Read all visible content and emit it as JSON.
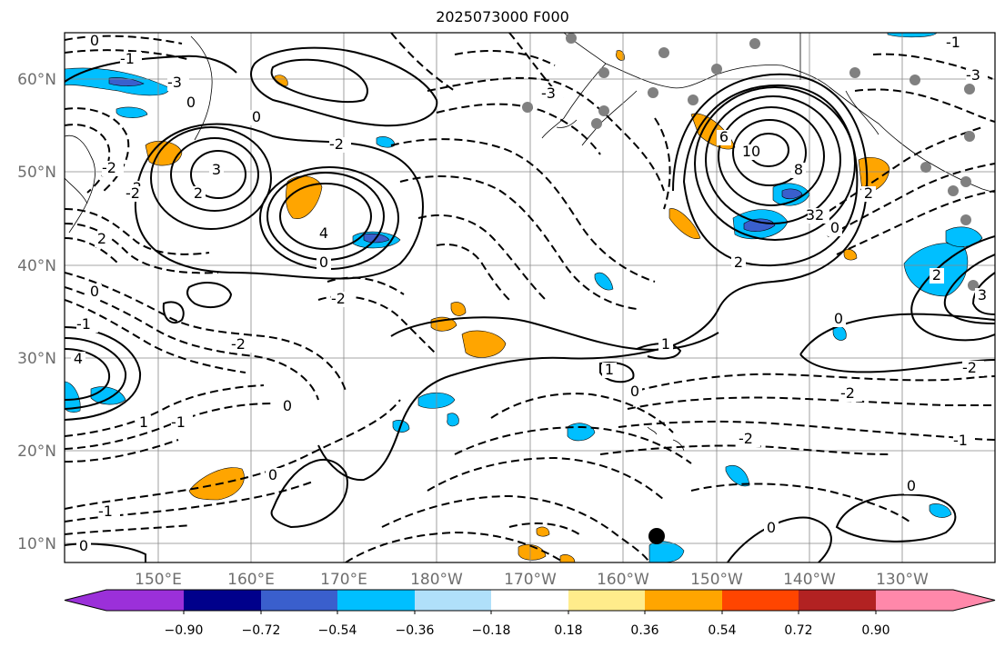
{
  "map": {
    "title": "2025073000 F000",
    "lat_labels": [
      "60°N",
      "50°N",
      "40°N",
      "30°N",
      "20°N",
      "10°N"
    ],
    "lon_labels": [
      "150°E",
      "160°E",
      "170°E",
      "180°W",
      "170°W",
      "160°W",
      "150°W",
      "140°W",
      "130°W"
    ],
    "contour_labels": [
      "0",
      "-1",
      "0",
      "3",
      "0",
      "-2",
      "-2",
      "2",
      "-3",
      "-2",
      "10",
      "8",
      "6",
      "4",
      "32",
      "2",
      "0",
      "-3",
      "2",
      "0",
      "-1",
      "-2",
      "1",
      "1",
      "0",
      "0",
      "-2",
      "-1",
      "0",
      "-3",
      "-2",
      "-1",
      "0",
      "0",
      "-2",
      "2",
      "0",
      "1",
      "3",
      "4",
      "-2",
      "-1",
      "-2",
      "0",
      "2",
      "0",
      "-1"
    ]
  },
  "colorbar": {
    "tick_labels": [
      "−0.90",
      "−0.72",
      "−0.54",
      "−0.36",
      "−0.18",
      "0.18",
      "0.36",
      "0.54",
      "0.72",
      "0.90"
    ],
    "colors": [
      "#9b30d9",
      "#00008b",
      "#3a5fcd",
      "#00bfff",
      "#b0e0fa",
      "#ffffff",
      "#ffec8b",
      "#ffa500",
      "#ff4500",
      "#b22222",
      "#ff88aa"
    ]
  }
}
